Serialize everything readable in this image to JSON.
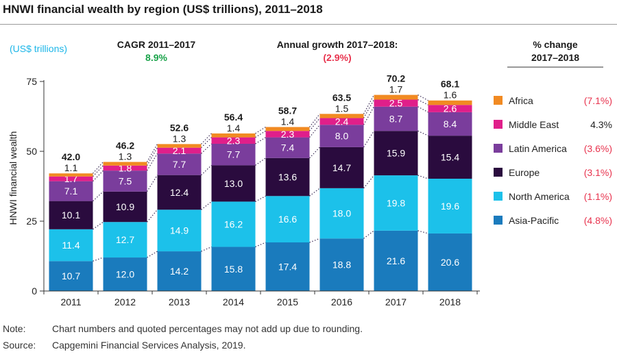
{
  "title": "HNWI financial wealth by region (US$ trillions), 2011–2018",
  "note": {
    "label": "Note:",
    "text": "Chart numbers and quoted percentages may not add up due to rounding."
  },
  "source": {
    "label": "Source:",
    "text": "Capgemini Financial Services Analysis, 2019."
  },
  "colors": {
    "asia_pacific": "#1a7bbd",
    "north_america": "#1cc1ea",
    "europe": "#2a0b3e",
    "latin_america": "#7a3d9c",
    "middle_east": "#e01f8a",
    "africa": "#f18a22",
    "cagr_green": "#1aa34a",
    "negative_red": "#e8334e",
    "units_cyan": "#1cb6e8"
  },
  "chart_data": {
    "type": "bar",
    "stacked": true,
    "title": "HNWI financial wealth by region (US$ trillions), 2011–2018",
    "units_label": "(US$ trillions)",
    "ylabel": "HNWI financial wealth",
    "xlabel": "",
    "ylim": [
      0,
      75
    ],
    "yticks": [
      0,
      25,
      50,
      75
    ],
    "grid": false,
    "categories": [
      "2011",
      "2012",
      "2013",
      "2014",
      "2015",
      "2016",
      "2017",
      "2018"
    ],
    "series": [
      {
        "name": "Asia-Pacific",
        "key": "asia_pacific",
        "values": [
          10.7,
          12.0,
          14.2,
          15.8,
          17.4,
          18.8,
          21.6,
          20.6
        ],
        "labels": [
          "10.7",
          "12.0",
          "14.2",
          "15.8",
          "17.4",
          "18.8",
          "21.6",
          "20.6"
        ],
        "change": "(4.8%)",
        "change_negative": true
      },
      {
        "name": "North America",
        "key": "north_america",
        "values": [
          11.4,
          12.7,
          14.9,
          16.2,
          16.6,
          18.0,
          19.8,
          19.6
        ],
        "labels": [
          "11.4",
          "12.7",
          "14.9",
          "16.2",
          "16.6",
          "18.0",
          "19.8",
          "19.6"
        ],
        "change": "(1.1%)",
        "change_negative": true
      },
      {
        "name": "Europe",
        "key": "europe",
        "values": [
          10.1,
          10.9,
          12.4,
          13.0,
          13.6,
          14.7,
          15.9,
          15.4
        ],
        "labels": [
          "10.1",
          "10.9",
          "12.4",
          "13.0",
          "13.6",
          "14.7",
          "15.9",
          "15.4"
        ],
        "change": "(3.1%)",
        "change_negative": true
      },
      {
        "name": "Latin America",
        "key": "latin_america",
        "values": [
          7.1,
          7.5,
          7.7,
          7.7,
          7.4,
          8.0,
          8.7,
          8.4
        ],
        "labels": [
          "7.1",
          "7.5",
          "7.7",
          "7.7",
          "7.4",
          "8.0",
          "8.7",
          "8.4"
        ],
        "change": "(3.6%)",
        "change_negative": true
      },
      {
        "name": "Middle East",
        "key": "middle_east",
        "values": [
          1.7,
          1.8,
          2.1,
          2.3,
          2.3,
          2.4,
          2.5,
          2.6
        ],
        "labels": [
          "1.7",
          "1.8",
          "2.1",
          "2.3",
          "2.3",
          "2.4",
          "2.5",
          "2.6"
        ],
        "change": "4.3%",
        "change_negative": false
      },
      {
        "name": "Africa",
        "key": "africa",
        "values": [
          1.1,
          1.3,
          1.3,
          1.4,
          1.4,
          1.5,
          1.7,
          1.6
        ],
        "labels": [
          "1.1",
          "1.3",
          "1.3",
          "1.4",
          "1.4",
          "1.5",
          "1.7",
          "1.6"
        ],
        "change": "(7.1%)",
        "change_negative": true
      }
    ],
    "totals": [
      42.0,
      46.2,
      52.6,
      56.4,
      58.7,
      63.5,
      70.2,
      68.1
    ],
    "total_labels": [
      "42.0",
      "46.2",
      "52.6",
      "56.4",
      "58.7",
      "63.5",
      "70.2",
      "68.1"
    ],
    "annotations": {
      "cagr_label": "CAGR 2011–2017",
      "cagr_value": "8.9%",
      "growth_label": "Annual growth 2017–2018:",
      "growth_value": "(2.9%)",
      "change_header_line1": "% change",
      "change_header_line2": "2017–2018"
    }
  }
}
